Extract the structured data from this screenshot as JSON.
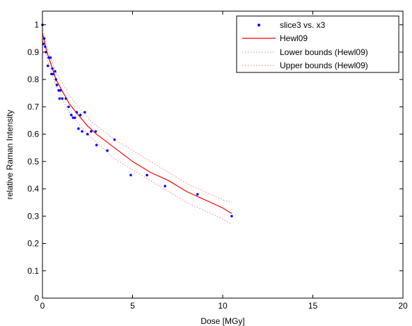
{
  "chart_data": {
    "type": "scatter",
    "xlabel": "Dose [MGy]",
    "ylabel": "relative Raman Intensity",
    "xlim": [
      0,
      20
    ],
    "ylim": [
      0,
      1.05
    ],
    "xticks": [
      "0",
      "5",
      "10",
      "15",
      "20"
    ],
    "yticks": [
      "0",
      "0.1",
      "0.2",
      "0.3",
      "0.4",
      "0.5",
      "0.6",
      "0.7",
      "0.8",
      "0.9",
      "1"
    ],
    "grid": false,
    "legend_position": "top-right",
    "colors": {
      "points": "#0000ff",
      "fit": "#ff0000",
      "bounds": "#ff8080"
    },
    "series": [
      {
        "name": "slice3 vs. x3",
        "kind": "points",
        "x": [
          0.0,
          0.05,
          0.1,
          0.15,
          0.2,
          0.3,
          0.35,
          0.45,
          0.5,
          0.55,
          0.6,
          0.7,
          0.75,
          0.8,
          0.9,
          0.95,
          1.0,
          1.1,
          1.3,
          1.45,
          1.6,
          1.7,
          1.8,
          1.9,
          2.0,
          2.1,
          2.2,
          2.35,
          2.5,
          2.7,
          2.95,
          3.0,
          3.6,
          4.0,
          4.9,
          5.8,
          6.8,
          8.6,
          10.5
        ],
        "y": [
          1.0,
          0.93,
          0.95,
          0.92,
          0.9,
          0.85,
          0.88,
          0.88,
          0.82,
          0.84,
          0.82,
          0.83,
          0.8,
          0.78,
          0.76,
          0.73,
          0.76,
          0.73,
          0.73,
          0.7,
          0.67,
          0.66,
          0.66,
          0.68,
          0.62,
          0.67,
          0.61,
          0.68,
          0.6,
          0.61,
          0.61,
          0.56,
          0.54,
          0.58,
          0.45,
          0.45,
          0.41,
          0.38,
          0.3
        ]
      },
      {
        "name": "Hewl09",
        "kind": "line",
        "x": [
          0,
          0.25,
          0.5,
          0.75,
          1,
          1.5,
          2,
          2.5,
          3,
          4,
          5,
          6,
          7,
          8,
          9,
          10,
          10.5
        ],
        "y": [
          0.97,
          0.9,
          0.85,
          0.8,
          0.77,
          0.71,
          0.67,
          0.63,
          0.6,
          0.55,
          0.5,
          0.46,
          0.43,
          0.39,
          0.36,
          0.33,
          0.31
        ]
      },
      {
        "name": "Lower bounds (Hewl09)",
        "kind": "dotted",
        "x": [
          0,
          0.25,
          0.5,
          0.75,
          1,
          1.5,
          2,
          2.5,
          3,
          4,
          5,
          6,
          7,
          8,
          9,
          10,
          10.5
        ],
        "y": [
          0.95,
          0.88,
          0.82,
          0.78,
          0.74,
          0.68,
          0.64,
          0.6,
          0.57,
          0.51,
          0.47,
          0.43,
          0.39,
          0.35,
          0.32,
          0.29,
          0.27
        ]
      },
      {
        "name": "Upper bounds (Hewl09)",
        "kind": "dotted",
        "x": [
          0,
          0.25,
          0.5,
          0.75,
          1,
          1.5,
          2,
          2.5,
          3,
          4,
          5,
          6,
          7,
          8,
          9,
          10,
          10.5
        ],
        "y": [
          0.99,
          0.92,
          0.87,
          0.83,
          0.8,
          0.74,
          0.7,
          0.66,
          0.63,
          0.58,
          0.54,
          0.5,
          0.46,
          0.42,
          0.39,
          0.36,
          0.35
        ]
      }
    ]
  }
}
